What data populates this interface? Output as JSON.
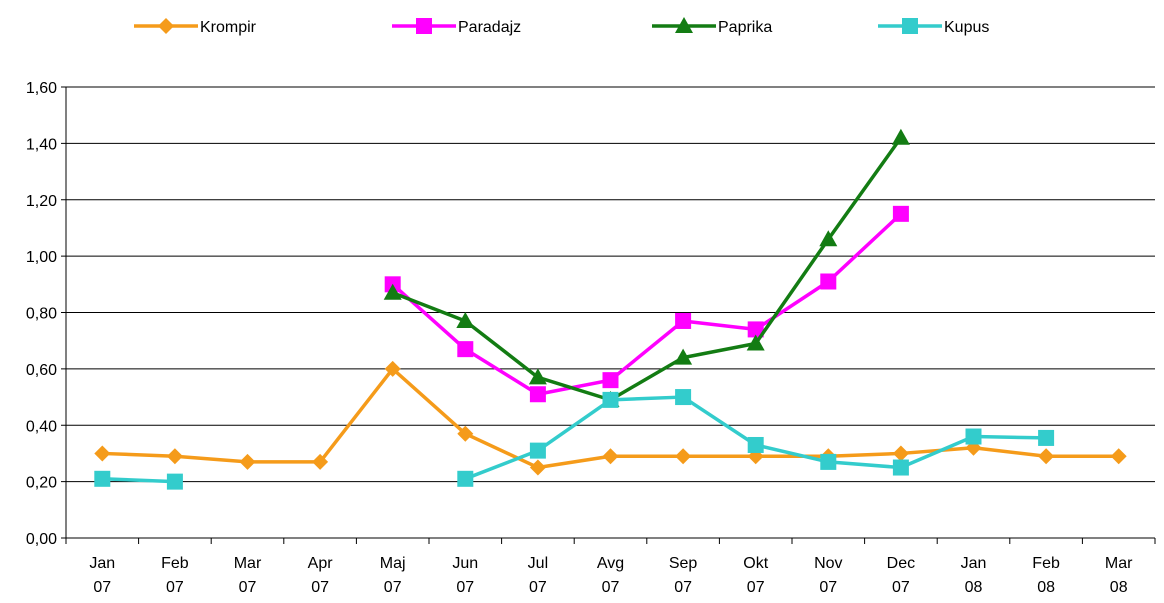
{
  "chart_data": {
    "type": "line",
    "categories": [
      "Jan 07",
      "Feb 07",
      "Mar 07",
      "Apr 07",
      "Maj 07",
      "Jun 07",
      "Jul 07",
      "Avg 07",
      "Sep 07",
      "Okt 07",
      "Nov 07",
      "Dec 07",
      "Jan 08",
      "Feb 08",
      "Mar 08"
    ],
    "series": [
      {
        "name": "Krompir",
        "color": "#f59b1a",
        "marker": "diamond",
        "values": [
          0.3,
          0.29,
          0.27,
          0.27,
          0.6,
          0.37,
          0.25,
          0.29,
          0.29,
          0.29,
          0.29,
          0.3,
          0.32,
          0.29,
          0.29
        ]
      },
      {
        "name": "Paradajz",
        "color": "#ff00ff",
        "marker": "square",
        "values": [
          null,
          null,
          null,
          null,
          0.9,
          0.67,
          0.51,
          0.56,
          0.77,
          0.74,
          0.91,
          1.15,
          null,
          null,
          null
        ]
      },
      {
        "name": "Paprika",
        "color": "#137c13",
        "marker": "triangle",
        "values": [
          null,
          null,
          null,
          null,
          0.87,
          0.77,
          0.57,
          0.49,
          0.64,
          0.69,
          1.06,
          1.42,
          null,
          null,
          null
        ]
      },
      {
        "name": "Kupus",
        "color": "#33cccc",
        "marker": "square",
        "values": [
          0.21,
          0.2,
          null,
          null,
          null,
          0.21,
          0.31,
          0.49,
          0.5,
          0.33,
          0.27,
          0.25,
          0.36,
          0.355,
          null
        ]
      }
    ],
    "ylim": [
      0,
      1.6
    ],
    "yticks": [
      {
        "value": 0,
        "label": "0,00"
      },
      {
        "value": 0.2,
        "label": "0,20"
      },
      {
        "value": 0.4,
        "label": "0,40"
      },
      {
        "value": 0.6,
        "label": "0,60"
      },
      {
        "value": 0.8,
        "label": "0,80"
      },
      {
        "value": 1.0,
        "label": "1,00"
      },
      {
        "value": 1.2,
        "label": "1,20"
      },
      {
        "value": 1.4,
        "label": "1,40"
      },
      {
        "value": 1.6,
        "label": "1,60"
      }
    ],
    "grid": true,
    "legend": "top"
  }
}
